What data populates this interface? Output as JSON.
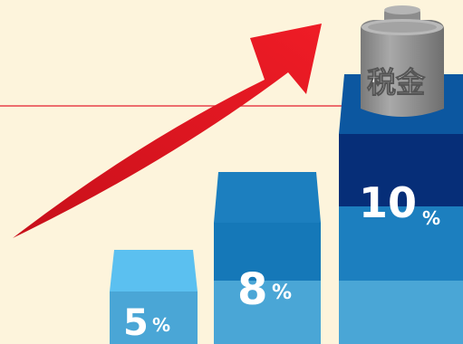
{
  "colors": {
    "background": "#fdf4dc",
    "rule_line": "#e8404a",
    "arrow": "#e1131f",
    "bar_top_light": "#5bc0f0",
    "bar_light": "#4aa6d6",
    "bar_mid": "#1c7fbf",
    "bar_dark": "#0c57a0",
    "bar_navy": "#062e78",
    "weight_gray": "#8f8f8f"
  },
  "bars": [
    {
      "rate": "5",
      "unit": "%"
    },
    {
      "rate": "8",
      "unit": "%"
    },
    {
      "rate": "10",
      "unit": "%"
    }
  ],
  "weight": {
    "label": "税金"
  },
  "icons": {
    "arrow": "upward-trend-arrow-icon",
    "weight": "weight-icon"
  }
}
